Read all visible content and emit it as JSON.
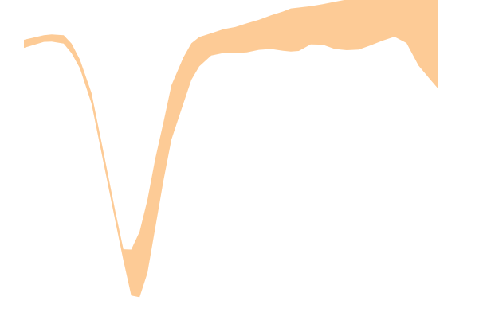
{
  "chart_data": {
    "type": "area",
    "title": "",
    "xlabel": "",
    "ylabel": "",
    "grid": false,
    "axes_visible": false,
    "legend": "none",
    "xlim": [
      0,
      100
    ],
    "ylim": [
      -1.0,
      0.12
    ],
    "series": [
      {
        "fill_color": "#fdcb96",
        "x": [
          0,
          4.8,
          6.7,
          9.6,
          11.5,
          13.5,
          16.3,
          19.2,
          22.1,
          24.0,
          25.9,
          27.9,
          29.8,
          31.7,
          33.7,
          35.6,
          38.5,
          40.4,
          42.3,
          45.2,
          48.1,
          51.0,
          53.8,
          56.7,
          59.6,
          62.5,
          64.4,
          66.3,
          69.2,
          72.1,
          75.0,
          77.9,
          80.8,
          83.7,
          86.5,
          89.4,
          92.3,
          95.2,
          98.1,
          100
        ],
        "lower": [
          -0.053,
          -0.032,
          -0.031,
          -0.038,
          -0.072,
          -0.124,
          -0.248,
          -0.454,
          -0.662,
          -0.797,
          -0.92,
          -0.926,
          -0.841,
          -0.683,
          -0.516,
          -0.374,
          -0.247,
          -0.165,
          -0.118,
          -0.08,
          -0.071,
          -0.071,
          -0.069,
          -0.06,
          -0.057,
          -0.063,
          -0.066,
          -0.064,
          -0.041,
          -0.042,
          -0.057,
          -0.061,
          -0.059,
          -0.044,
          -0.028,
          -0.014,
          -0.036,
          -0.115,
          -0.165,
          -0.197
        ],
        "upper": [
          -0.025,
          -0.009,
          -0.006,
          -0.009,
          -0.038,
          -0.094,
          -0.211,
          -0.417,
          -0.628,
          -0.758,
          -0.759,
          -0.697,
          -0.585,
          -0.441,
          -0.312,
          -0.184,
          -0.086,
          -0.037,
          -0.015,
          -0.002,
          0.012,
          0.02,
          0.033,
          0.045,
          0.061,
          0.074,
          0.085,
          0.088,
          0.093,
          0.1,
          0.108,
          0.116,
          0.119,
          0.118,
          0.117,
          0.116,
          0.116,
          0.116,
          0.118,
          0.117
        ]
      }
    ]
  }
}
